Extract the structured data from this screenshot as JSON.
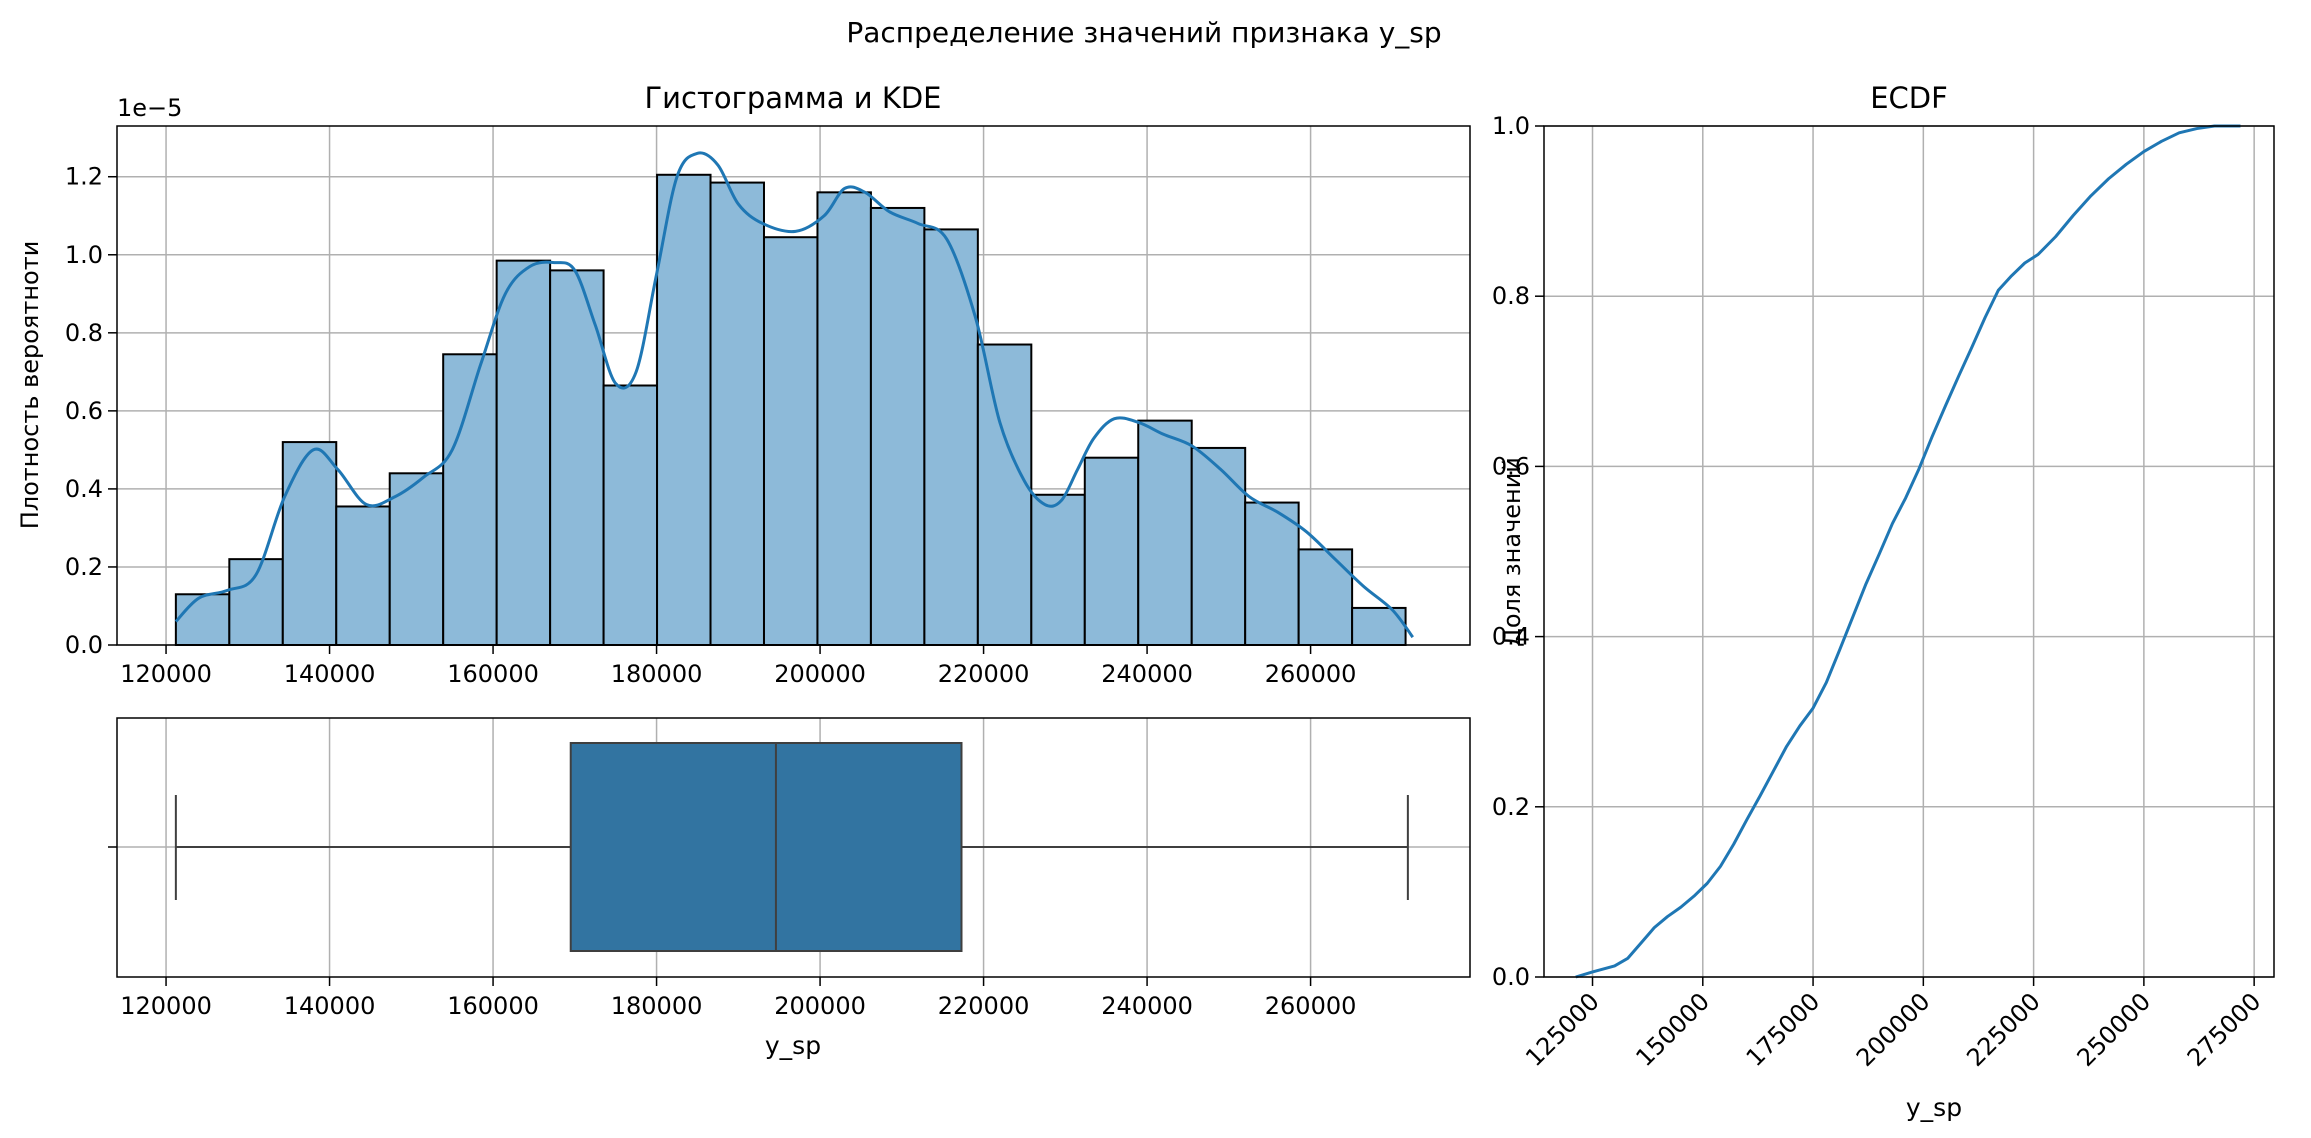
{
  "suptitle": "Распределение значений признака y_sp",
  "colors": {
    "bar_fill": "#8dbad9",
    "bar_edge": "#000000",
    "line": "#1f77b4",
    "box_fill": "#3274a1",
    "box_edge": "#3f3f3f",
    "grid": "#b0b0b0"
  },
  "chart_data": [
    {
      "type": "bar",
      "subtype": "histogram-with-kde",
      "title": "Гистограмма и KDE",
      "ylabel": "Плотность вероятноти",
      "xlabel": "",
      "scale_label": "1e−5",
      "xlim": [
        114000,
        279500
      ],
      "ylim": [
        0,
        1.33
      ],
      "xticks": [
        120000,
        140000,
        160000,
        180000,
        200000,
        220000,
        240000,
        260000
      ],
      "yticks": [
        0.0,
        0.2,
        0.4,
        0.6,
        0.8,
        1.0,
        1.2
      ],
      "grid": true,
      "bin_start": 121200,
      "bin_width": 6540,
      "values": [
        0.13,
        0.22,
        0.52,
        0.355,
        0.44,
        0.745,
        0.985,
        0.96,
        0.665,
        1.205,
        1.185,
        1.045,
        1.16,
        1.12,
        1.065,
        0.77,
        0.385,
        0.48,
        0.575,
        0.505,
        0.365,
        0.245,
        0.095
      ],
      "kde": {
        "x": [
          121200,
          124000,
          127500,
          131000,
          134500,
          138000,
          141000,
          144500,
          148000,
          151500,
          155000,
          158500,
          161500,
          164500,
          167500,
          170000,
          172500,
          175000,
          177500,
          180000,
          182500,
          185000,
          187500,
          190000,
          193000,
          197000,
          200500,
          203000,
          205500,
          208500,
          212000,
          215500,
          219000,
          222000,
          225000,
          227500,
          229500,
          231500,
          233500,
          236000,
          239000,
          242000,
          245500,
          249000,
          252500,
          256000,
          259500,
          263000,
          266500,
          270000,
          272500
        ],
        "y": [
          0.06,
          0.12,
          0.14,
          0.18,
          0.38,
          0.5,
          0.45,
          0.36,
          0.38,
          0.43,
          0.5,
          0.72,
          0.9,
          0.97,
          0.98,
          0.96,
          0.82,
          0.67,
          0.7,
          0.95,
          1.2,
          1.26,
          1.23,
          1.13,
          1.08,
          1.06,
          1.1,
          1.17,
          1.16,
          1.11,
          1.08,
          1.04,
          0.84,
          0.57,
          0.42,
          0.36,
          0.37,
          0.45,
          0.53,
          0.58,
          0.57,
          0.54,
          0.51,
          0.45,
          0.38,
          0.34,
          0.29,
          0.22,
          0.15,
          0.09,
          0.02
        ]
      }
    },
    {
      "type": "box",
      "title": "",
      "xlabel": "y_sp",
      "ylabel": "",
      "xlim": [
        114000,
        279500
      ],
      "xticks": [
        120000,
        140000,
        160000,
        180000,
        200000,
        220000,
        240000,
        260000
      ],
      "grid": true,
      "stats": {
        "whisker_low": 121200,
        "q1": 169500,
        "median": 194600,
        "q3": 217300,
        "whisker_high": 271900
      }
    },
    {
      "type": "line",
      "subtype": "ecdf",
      "title": "ECDF",
      "xlabel": "y_sp",
      "ylabel": "Доля значений",
      "xlim": [
        114000,
        279500
      ],
      "ylim": [
        0,
        1.0
      ],
      "xticks": [
        125000,
        150000,
        175000,
        200000,
        225000,
        250000,
        275000
      ],
      "yticks": [
        0.0,
        0.2,
        0.4,
        0.6,
        0.8,
        1.0
      ],
      "xtick_rotation": 45,
      "grid": true,
      "x": [
        121200,
        125000,
        130000,
        133000,
        136000,
        139000,
        142000,
        145000,
        148000,
        151000,
        154000,
        157000,
        160000,
        163000,
        166000,
        169000,
        172000,
        175000,
        178000,
        181000,
        184000,
        187000,
        190000,
        193000,
        196000,
        199000,
        202000,
        205000,
        208000,
        211000,
        214000,
        217000,
        220000,
        223000,
        226000,
        230000,
        234000,
        238000,
        242000,
        246000,
        250000,
        254000,
        258000,
        262000,
        266000,
        270000,
        271900
      ],
      "y": [
        0.0,
        0.006,
        0.013,
        0.022,
        0.04,
        0.058,
        0.071,
        0.082,
        0.095,
        0.11,
        0.13,
        0.156,
        0.185,
        0.213,
        0.242,
        0.271,
        0.295,
        0.316,
        0.346,
        0.384,
        0.423,
        0.462,
        0.497,
        0.533,
        0.563,
        0.597,
        0.635,
        0.671,
        0.706,
        0.74,
        0.775,
        0.807,
        0.824,
        0.839,
        0.849,
        0.87,
        0.895,
        0.918,
        0.938,
        0.955,
        0.97,
        0.982,
        0.992,
        0.997,
        1.0,
        1.0,
        1.0
      ]
    }
  ]
}
